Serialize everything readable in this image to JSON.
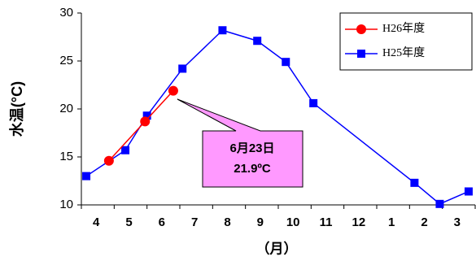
{
  "chart_data": {
    "type": "line",
    "ylabel": "水温(°C)",
    "xlabel": "（月）",
    "categories": [
      "4",
      "5",
      "6",
      "7",
      "8",
      "9",
      "10",
      "11",
      "12",
      "1",
      "2",
      "3"
    ],
    "xlim": [
      0,
      12
    ],
    "ylim": [
      10,
      30
    ],
    "yticks": [
      10,
      15,
      20,
      25,
      30
    ],
    "series": [
      {
        "name": "H25年度",
        "color": "#0000ff",
        "marker": "square",
        "x": [
          0.15,
          1.34,
          2.0,
          3.08,
          4.3,
          5.36,
          6.23,
          7.07,
          10.15,
          10.92,
          11.8
        ],
        "values": [
          13.0,
          15.7,
          19.3,
          24.2,
          28.2,
          27.1,
          24.9,
          20.6,
          12.3,
          10.1,
          11.4
        ]
      },
      {
        "name": "H26年度",
        "color": "#ff0000",
        "marker": "circle",
        "x": [
          0.84,
          1.94,
          2.8
        ],
        "values": [
          14.6,
          18.7,
          21.9
        ]
      }
    ],
    "legend_order": [
      1,
      0
    ],
    "annotation": [
      "6月23日",
      "21.9ºC"
    ]
  }
}
